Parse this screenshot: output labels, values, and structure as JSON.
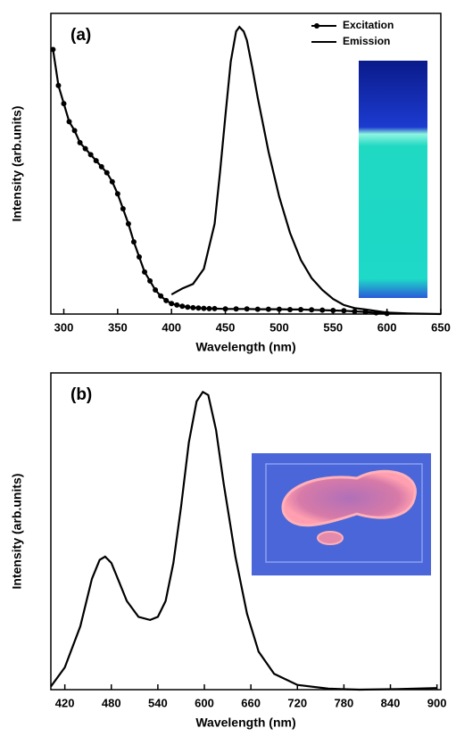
{
  "chart_data": [
    {
      "type": "line",
      "annotation": "(a)",
      "xlabel": "Wavelength (nm)",
      "ylabel": "Intensity (arb.units)",
      "xlim": [
        288,
        650
      ],
      "xticks": [
        300,
        350,
        400,
        450,
        500,
        550,
        600,
        650
      ],
      "ylim": [
        0,
        1
      ],
      "legend": "upper right",
      "series": [
        {
          "name": "Excitation",
          "color": "#000000",
          "marker": true,
          "x": [
            290,
            295,
            300,
            305,
            310,
            315,
            320,
            325,
            330,
            335,
            340,
            345,
            350,
            355,
            360,
            365,
            370,
            375,
            380,
            385,
            390,
            395,
            400,
            405,
            410,
            415,
            420,
            425,
            430,
            435,
            440,
            450,
            460,
            470,
            480,
            490,
            500,
            510,
            520,
            530,
            540,
            550,
            560,
            570,
            580,
            590,
            600
          ],
          "values": [
            0.88,
            0.76,
            0.7,
            0.64,
            0.61,
            0.57,
            0.55,
            0.53,
            0.51,
            0.49,
            0.47,
            0.44,
            0.4,
            0.35,
            0.3,
            0.24,
            0.19,
            0.14,
            0.11,
            0.08,
            0.06,
            0.045,
            0.035,
            0.03,
            0.026,
            0.023,
            0.021,
            0.02,
            0.019,
            0.018,
            0.018,
            0.017,
            0.017,
            0.017,
            0.016,
            0.016,
            0.016,
            0.015,
            0.015,
            0.014,
            0.013,
            0.012,
            0.011,
            0.009,
            0.007,
            0.004,
            0.002
          ]
        },
        {
          "name": "Emission",
          "color": "#000000",
          "marker": false,
          "x": [
            400,
            410,
            420,
            430,
            440,
            445,
            450,
            455,
            460,
            463,
            467,
            470,
            475,
            480,
            490,
            500,
            510,
            520,
            530,
            540,
            550,
            560,
            570,
            580,
            600,
            620,
            650
          ],
          "values": [
            0.065,
            0.085,
            0.1,
            0.15,
            0.3,
            0.47,
            0.66,
            0.84,
            0.94,
            0.955,
            0.94,
            0.91,
            0.82,
            0.72,
            0.54,
            0.39,
            0.27,
            0.18,
            0.12,
            0.08,
            0.05,
            0.03,
            0.02,
            0.015,
            0.005,
            0.002,
            0
          ]
        }
      ]
    },
    {
      "type": "line",
      "annotation": "(b)",
      "xlabel": "Wavelength (nm)",
      "ylabel": "Intensity (arb.units)",
      "xlim": [
        402,
        905
      ],
      "xticks": [
        420,
        480,
        540,
        600,
        660,
        720,
        780,
        840,
        900
      ],
      "ylim": [
        0,
        1
      ],
      "series": [
        {
          "color": "#000000",
          "marker": false,
          "x": [
            402,
            420,
            440,
            455,
            465,
            472,
            480,
            490,
            500,
            515,
            530,
            540,
            550,
            560,
            570,
            580,
            590,
            598,
            605,
            615,
            625,
            640,
            655,
            670,
            690,
            720,
            760,
            800,
            850,
            900
          ],
          "values": [
            0.01,
            0.07,
            0.2,
            0.35,
            0.41,
            0.42,
            0.4,
            0.34,
            0.28,
            0.23,
            0.22,
            0.23,
            0.28,
            0.4,
            0.58,
            0.78,
            0.91,
            0.94,
            0.93,
            0.82,
            0.65,
            0.42,
            0.24,
            0.12,
            0.05,
            0.015,
            0.003,
            0,
            0.002,
            0.005
          ]
        }
      ]
    }
  ]
}
